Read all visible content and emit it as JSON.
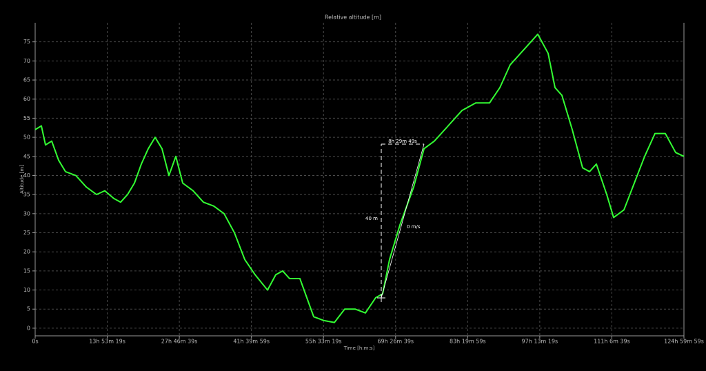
{
  "chart_data": {
    "type": "line",
    "title": "Relative altitude [m]",
    "x_label": "Time [h:m:s]",
    "y_label": "Altitude [m]",
    "annotations": [
      "8h 29m 49s",
      "40 m",
      "0 m/s"
    ],
    "color": "#33ff33",
    "grid": true,
    "xlim": [
      0,
      449999
    ],
    "ylim": [
      -2,
      80
    ],
    "xticks": [
      {
        "value": 0,
        "label": "0s"
      },
      {
        "value": 49999,
        "label": "13h 53m 19s"
      },
      {
        "value": 99999,
        "label": "27h 46m 39s"
      },
      {
        "value": 149999,
        "label": "41h 39m 59s"
      },
      {
        "value": 199999,
        "label": "55h 33m 19s"
      },
      {
        "value": 249999,
        "label": "69h 26m 39s"
      },
      {
        "value": 299999,
        "label": "83h 19m 59s"
      },
      {
        "value": 349999,
        "label": "97h 13m 19s"
      },
      {
        "value": 399999,
        "label": "111h 6m 39s"
      },
      {
        "value": 449999,
        "label": "124h 59m 59s"
      }
    ],
    "yticks": [
      0,
      5,
      10,
      15,
      20,
      25,
      30,
      35,
      40,
      45,
      50,
      55,
      60,
      65,
      70,
      75
    ],
    "x": [
      0,
      4304,
      7173,
      11477,
      16259,
      21041,
      28214,
      35387,
      42560,
      48298,
      54515,
      59297,
      64079,
      68861,
      73643,
      78425,
      83207,
      87989,
      92771,
      97553,
      102335,
      109508,
      116681,
      123854,
      131027,
      138200,
      145373,
      152546,
      161153,
      166892,
      171674,
      176456,
      183629,
      188411,
      193193,
      200366,
      207539,
      214712,
      221885,
      229058,
      236231,
      241013,
      245795,
      252968,
      262532,
      269706,
      276879,
      286443,
      296007,
      305571,
      315135,
      322308,
      329481,
      339045,
      348609,
      355782,
      360564,
      365346,
      372519,
      379692,
      384474,
      389256,
      396429,
      401211,
      408384,
      415557,
      422730,
      429903,
      437076,
      444258,
      449999
    ],
    "values": [
      52,
      53,
      48,
      49,
      44,
      41,
      40,
      37,
      35,
      36,
      34,
      33,
      35,
      38,
      43,
      47,
      50,
      47,
      40,
      45,
      38,
      36,
      33,
      32,
      30,
      25,
      18,
      14,
      10,
      14,
      15,
      13,
      13,
      8,
      3,
      2,
      1.5,
      5,
      5,
      4,
      8,
      9,
      18,
      27,
      37,
      47,
      49,
      53,
      57,
      59,
      59,
      63,
      69,
      73,
      77,
      72,
      63,
      61,
      52,
      42,
      41,
      43,
      35,
      29,
      31,
      38,
      45,
      51,
      51,
      46,
      45
    ]
  }
}
